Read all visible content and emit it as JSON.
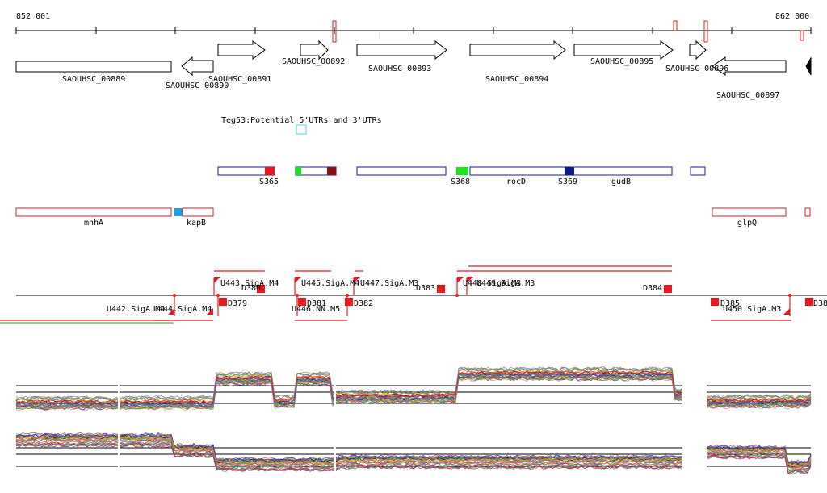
{
  "ruler": {
    "start_label": "852 001",
    "end_label": "862 000"
  },
  "genes_top": [
    {
      "label": "SAOUHSC_00889"
    },
    {
      "label": "SAOUHSC_00890"
    },
    {
      "label": "SAOUHSC_00891"
    },
    {
      "label": "SAOUHSC_00892"
    },
    {
      "label": "SAOUHSC_00893"
    },
    {
      "label": "SAOUHSC_00894"
    },
    {
      "label": "SAOUHSC_00895"
    },
    {
      "label": "SAOUHSC_00896"
    },
    {
      "label": "SAOUHSC_00897"
    }
  ],
  "teg_label": "Teg53:Potential 5'UTRs and 3'UTRs",
  "track2_labels": [
    "S365",
    "S368",
    "rocD",
    "S369",
    "gudB"
  ],
  "track3_labels": [
    "mnhA",
    "kapB",
    "glpQ"
  ],
  "promoter_labels": [
    "U442.SigA.M4",
    "U444.SigA.M4",
    "U443.SigA.M4",
    "U445.SigA.M4",
    "U447.SigA.M3",
    "U448.SigA.M3",
    "U449.SigA.M3",
    "U446.NN.M5",
    "U450.SigA.M3",
    "D379",
    "D380",
    "D381",
    "D382",
    "D383",
    "D384",
    "D385",
    "D38"
  ],
  "colors": {
    "red": "#e8191e",
    "green": "#19e619",
    "darkred": "#8b1010",
    "blue": "#0a1a8c",
    "lightblue": "#1aa0e6",
    "navy": "#1a1aa0",
    "cyan": "#44dddd"
  }
}
